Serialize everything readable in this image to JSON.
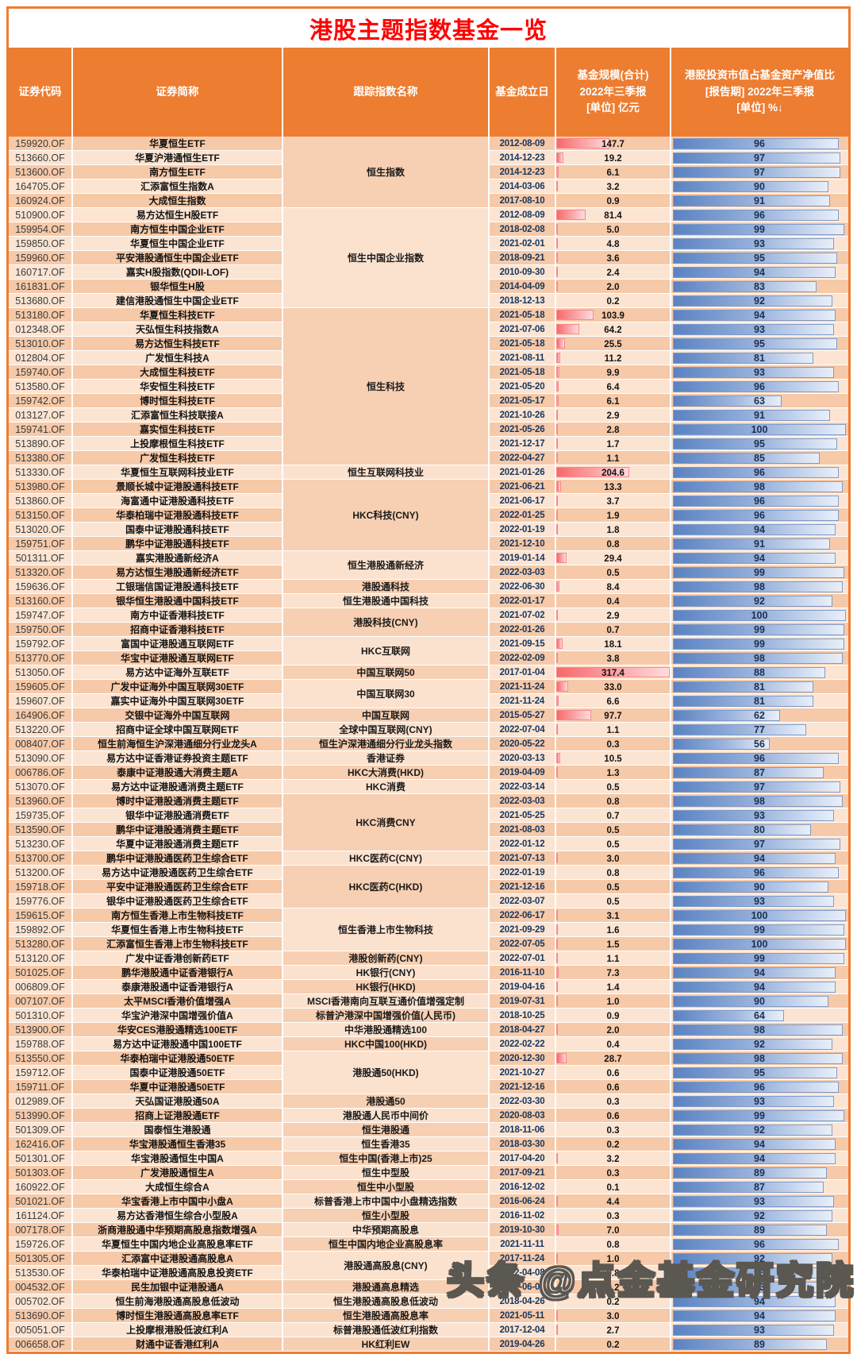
{
  "title": "港股主题指数基金一览",
  "watermark": "头条 @点金基金研究院",
  "colors": {
    "header_bg": "#ED7D31",
    "title_red": "#FE0000",
    "row_dark": "#F6C9A8",
    "row_light": "#FCE4D2",
    "size_bar": "#F8696B",
    "pct_bar": "#5A82C2"
  },
  "table": {
    "columns": [
      "证券代码",
      "证券简称",
      "跟踪指数名称",
      "基金成立日",
      "基金规模(合计)\n2022年三季报\n[单位] 亿元",
      "港股投资市值占基金资产净值比\n[报告期] 2022年三季报\n[单位] %↓"
    ],
    "size_bar_max": 317.4,
    "size_bar_visible_min": 1.0,
    "groups": [
      {
        "index_name": "恒生指数",
        "rows": [
          {
            "code": "159920.OF",
            "name": "华夏恒生ETF",
            "date": "2012-08-09",
            "size": "147.7",
            "pct": 96
          },
          {
            "code": "513660.OF",
            "name": "华夏沪港通恒生ETF",
            "date": "2014-12-23",
            "size": "19.2",
            "pct": 97
          },
          {
            "code": "513600.OF",
            "name": "南方恒生ETF",
            "date": "2014-12-23",
            "size": "6.1",
            "pct": 97
          },
          {
            "code": "164705.OF",
            "name": "汇添富恒生指数A",
            "date": "2014-03-06",
            "size": "3.2",
            "pct": 90
          },
          {
            "code": "160924.OF",
            "name": "大成恒生指数",
            "date": "2017-08-10",
            "size": "0.9",
            "pct": 91
          }
        ]
      },
      {
        "index_name": "恒生中国企业指数",
        "rows": [
          {
            "code": "510900.OF",
            "name": "易方达恒生H股ETF",
            "date": "2012-08-09",
            "size": "81.4",
            "pct": 96
          },
          {
            "code": "159954.OF",
            "name": "南方恒生中国企业ETF",
            "date": "2018-02-08",
            "size": "5.0",
            "pct": 99
          },
          {
            "code": "159850.OF",
            "name": "华夏恒生中国企业ETF",
            "date": "2021-02-01",
            "size": "4.8",
            "pct": 93
          },
          {
            "code": "159960.OF",
            "name": "平安港股通恒生中国企业ETF",
            "date": "2018-09-21",
            "size": "3.6",
            "pct": 95
          },
          {
            "code": "160717.OF",
            "name": "嘉实H股指数(QDII-LOF)",
            "date": "2010-09-30",
            "size": "2.4",
            "pct": 94
          },
          {
            "code": "161831.OF",
            "name": "银华恒生H股",
            "date": "2014-04-09",
            "size": "2.0",
            "pct": 83
          },
          {
            "code": "513680.OF",
            "name": "建信港股通恒生中国企业ETF",
            "date": "2018-12-13",
            "size": "0.2",
            "pct": 92
          }
        ]
      },
      {
        "index_name": "恒生科技",
        "rows": [
          {
            "code": "513180.OF",
            "name": "华夏恒生科技ETF",
            "date": "2021-05-18",
            "size": "103.9",
            "pct": 94
          },
          {
            "code": "012348.OF",
            "name": "天弘恒生科技指数A",
            "date": "2021-07-06",
            "size": "64.2",
            "pct": 93
          },
          {
            "code": "513010.OF",
            "name": "易方达恒生科技ETF",
            "date": "2021-05-18",
            "size": "25.5",
            "pct": 95
          },
          {
            "code": "012804.OF",
            "name": "广发恒生科技A",
            "date": "2021-08-11",
            "size": "11.2",
            "pct": 81
          },
          {
            "code": "159740.OF",
            "name": "大成恒生科技ETF",
            "date": "2021-05-18",
            "size": "9.9",
            "pct": 93
          },
          {
            "code": "513580.OF",
            "name": "华安恒生科技ETF",
            "date": "2021-05-20",
            "size": "6.4",
            "pct": 96
          },
          {
            "code": "159742.OF",
            "name": "博时恒生科技ETF",
            "date": "2021-05-17",
            "size": "6.1",
            "pct": 63
          },
          {
            "code": "013127.OF",
            "name": "汇添富恒生科技联接A",
            "date": "2021-10-26",
            "size": "2.9",
            "pct": 91
          },
          {
            "code": "159741.OF",
            "name": "嘉实恒生科技ETF",
            "date": "2021-05-26",
            "size": "2.8",
            "pct": 100
          },
          {
            "code": "513890.OF",
            "name": "上投摩根恒生科技ETF",
            "date": "2021-12-17",
            "size": "1.7",
            "pct": 95
          },
          {
            "code": "513380.OF",
            "name": "广发恒生科技ETF",
            "date": "2022-04-27",
            "size": "1.1",
            "pct": 85
          }
        ]
      },
      {
        "index_name": "恒生互联网科技业",
        "rows": [
          {
            "code": "513330.OF",
            "name": "华夏恒生互联网科技业ETF",
            "date": "2021-01-26",
            "size": "204.6",
            "pct": 96
          }
        ]
      },
      {
        "index_name": "HKC科技(CNY)",
        "rows": [
          {
            "code": "513980.OF",
            "name": "景顺长城中证港股通科技ETF",
            "date": "2021-06-21",
            "size": "13.3",
            "pct": 98
          },
          {
            "code": "513860.OF",
            "name": "海富通中证港股通科技ETF",
            "date": "2021-06-17",
            "size": "3.7",
            "pct": 96
          },
          {
            "code": "513150.OF",
            "name": "华泰柏瑞中证港股通科技ETF",
            "date": "2022-01-25",
            "size": "1.9",
            "pct": 96
          },
          {
            "code": "513020.OF",
            "name": "国泰中证港股通科技ETF",
            "date": "2022-01-19",
            "size": "1.8",
            "pct": 94
          },
          {
            "code": "159751.OF",
            "name": "鹏华中证港股通科技ETF",
            "date": "2021-12-10",
            "size": "0.8",
            "pct": 91
          }
        ]
      },
      {
        "index_name": "恒生港股通新经济",
        "rows": [
          {
            "code": "501311.OF",
            "name": "嘉实港股通新经济A",
            "date": "2019-01-14",
            "size": "29.4",
            "pct": 94
          },
          {
            "code": "513320.OF",
            "name": "易方达恒生港股通新经济ETF",
            "date": "2022-03-03",
            "size": "0.5",
            "pct": 99
          }
        ]
      },
      {
        "index_name": "港股通科技",
        "rows": [
          {
            "code": "159636.OF",
            "name": "工银瑞信国证港股通科技ETF",
            "date": "2022-06-30",
            "size": "8.4",
            "pct": 98
          }
        ]
      },
      {
        "index_name": "恒生港股通中国科技",
        "rows": [
          {
            "code": "513160.OF",
            "name": "银华恒生港股通中国科技ETF",
            "date": "2022-01-17",
            "size": "0.4",
            "pct": 92
          }
        ]
      },
      {
        "index_name": "港股科技(CNY)",
        "rows": [
          {
            "code": "159747.OF",
            "name": "南方中证香港科技ETF",
            "date": "2021-07-02",
            "size": "2.9",
            "pct": 100
          },
          {
            "code": "159750.OF",
            "name": "招商中证香港科技ETF",
            "date": "2022-01-26",
            "size": "0.7",
            "pct": 99
          }
        ]
      },
      {
        "index_name": "HKC互联网",
        "rows": [
          {
            "code": "159792.OF",
            "name": "富国中证港股通互联网ETF",
            "date": "2021-09-15",
            "size": "18.1",
            "pct": 99
          },
          {
            "code": "513770.OF",
            "name": "华宝中证港股通互联网ETF",
            "date": "2022-02-09",
            "size": "3.8",
            "pct": 98
          }
        ]
      },
      {
        "index_name": "中国互联网50",
        "rows": [
          {
            "code": "513050.OF",
            "name": "易方达中证海外互联ETF",
            "date": "2017-01-04",
            "size": "317.4",
            "pct": 88
          }
        ]
      },
      {
        "index_name": "中国互联网30",
        "rows": [
          {
            "code": "159605.OF",
            "name": "广发中证海外中国互联网30ETF",
            "date": "2021-11-24",
            "size": "33.0",
            "pct": 81
          },
          {
            "code": "159607.OF",
            "name": "嘉实中证海外中国互联网30ETF",
            "date": "2021-11-24",
            "size": "6.6",
            "pct": 81
          }
        ]
      },
      {
        "index_name": "中国互联网",
        "rows": [
          {
            "code": "164906.OF",
            "name": "交银中证海外中国互联网",
            "date": "2015-05-27",
            "size": "97.7",
            "pct": 62
          }
        ]
      },
      {
        "index_name": "全球中国互联网(CNY)",
        "rows": [
          {
            "code": "513220.OF",
            "name": "招商中证全球中国互联网ETF",
            "date": "2022-07-04",
            "size": "1.1",
            "pct": 77
          }
        ]
      },
      {
        "index_name": "恒生沪深港通细分行业龙头指数",
        "rows": [
          {
            "code": "008407.OF",
            "name": "恒生前海恒生沪深港通细分行业龙头A",
            "date": "2020-05-22",
            "size": "0.3",
            "pct": 56
          }
        ]
      },
      {
        "index_name": "香港证券",
        "rows": [
          {
            "code": "513090.OF",
            "name": "易方达中证香港证券投资主题ETF",
            "date": "2020-03-13",
            "size": "10.5",
            "pct": 96
          }
        ]
      },
      {
        "index_name": "HKC大消费(HKD)",
        "rows": [
          {
            "code": "006786.OF",
            "name": "泰康中证港股通大消费主题A",
            "date": "2019-04-09",
            "size": "1.3",
            "pct": 87
          }
        ]
      },
      {
        "index_name": "HKC消费",
        "rows": [
          {
            "code": "513070.OF",
            "name": "易方达中证港股通消费主题ETF",
            "date": "2022-03-14",
            "size": "0.5",
            "pct": 97
          }
        ]
      },
      {
        "index_name": "HKC消费CNY",
        "rows": [
          {
            "code": "513960.OF",
            "name": "博时中证港股通消费主题ETF",
            "date": "2022-03-03",
            "size": "0.8",
            "pct": 98
          },
          {
            "code": "159735.OF",
            "name": "银华中证港股通消费ETF",
            "date": "2021-05-25",
            "size": "0.7",
            "pct": 93
          },
          {
            "code": "513590.OF",
            "name": "鹏华中证港股通消费主题ETF",
            "date": "2021-08-03",
            "size": "0.5",
            "pct": 80
          },
          {
            "code": "513230.OF",
            "name": "华夏中证港股通消费主题ETF",
            "date": "2022-01-12",
            "size": "0.5",
            "pct": 97
          }
        ]
      },
      {
        "index_name": "HKC医药C(CNY)",
        "rows": [
          {
            "code": "513700.OF",
            "name": "鹏华中证港股通医药卫生综合ETF",
            "date": "2021-07-13",
            "size": "3.0",
            "pct": 94
          }
        ]
      },
      {
        "index_name": "HKC医药C(HKD)",
        "rows": [
          {
            "code": "513200.OF",
            "name": "易方达中证港股通医药卫生综合ETF",
            "date": "2022-01-19",
            "size": "0.8",
            "pct": 96
          },
          {
            "code": "159718.OF",
            "name": "平安中证港股通医药卫生综合ETF",
            "date": "2021-12-16",
            "size": "0.5",
            "pct": 90
          },
          {
            "code": "159776.OF",
            "name": "银华中证港股通医药卫生综合ETF",
            "date": "2022-03-07",
            "size": "0.5",
            "pct": 93
          }
        ]
      },
      {
        "index_name": "恒生香港上市生物科技",
        "rows": [
          {
            "code": "159615.OF",
            "name": "南方恒生香港上市生物科技ETF",
            "date": "2022-06-17",
            "size": "3.1",
            "pct": 100
          },
          {
            "code": "159892.OF",
            "name": "华夏恒生香港上市生物科技ETF",
            "date": "2021-09-29",
            "size": "1.6",
            "pct": 99
          },
          {
            "code": "513280.OF",
            "name": "汇添富恒生香港上市生物科技ETF",
            "date": "2022-07-05",
            "size": "1.5",
            "pct": 100
          }
        ]
      },
      {
        "index_name": "港股创新药(CNY)",
        "rows": [
          {
            "code": "513120.OF",
            "name": "广发中证香港创新药ETF",
            "date": "2022-07-01",
            "size": "1.1",
            "pct": 99
          }
        ]
      },
      {
        "index_name": "HK银行(CNY)",
        "rows": [
          {
            "code": "501025.OF",
            "name": "鹏华港股通中证香港银行A",
            "date": "2016-11-10",
            "size": "7.3",
            "pct": 94
          }
        ]
      },
      {
        "index_name": "HK银行(HKD)",
        "rows": [
          {
            "code": "006809.OF",
            "name": "泰康港股通中证香港银行A",
            "date": "2019-04-16",
            "size": "1.4",
            "pct": 94
          }
        ]
      },
      {
        "index_name": "MSCI香港南向互联互通价值增强定制",
        "rows": [
          {
            "code": "007107.OF",
            "name": "太平MSCI香港价值增强A",
            "date": "2019-07-31",
            "size": "1.0",
            "pct": 90
          }
        ]
      },
      {
        "index_name": "标普沪港深中国增强价值(人民币)",
        "rows": [
          {
            "code": "501310.OF",
            "name": "华宝沪港深中国增强价值A",
            "date": "2018-10-25",
            "size": "0.9",
            "pct": 64
          }
        ]
      },
      {
        "index_name": "中华港股通精选100",
        "rows": [
          {
            "code": "513900.OF",
            "name": "华安CES港股通精选100ETF",
            "date": "2018-04-27",
            "size": "2.0",
            "pct": 98
          }
        ]
      },
      {
        "index_name": "HKC中国100(HKD)",
        "rows": [
          {
            "code": "159788.OF",
            "name": "易方达中证港股通中国100ETF",
            "date": "2022-02-22",
            "size": "0.4",
            "pct": 92
          }
        ]
      },
      {
        "index_name": "港股通50(HKD)",
        "rows": [
          {
            "code": "513550.OF",
            "name": "华泰柏瑞中证港股通50ETF",
            "date": "2020-12-30",
            "size": "28.7",
            "pct": 98
          },
          {
            "code": "159712.OF",
            "name": "国泰中证港股通50ETF",
            "date": "2021-10-27",
            "size": "0.6",
            "pct": 95
          },
          {
            "code": "159711.OF",
            "name": "华夏中证港股通50ETF",
            "date": "2021-12-16",
            "size": "0.6",
            "pct": 96
          }
        ]
      },
      {
        "index_name": "港股通50",
        "rows": [
          {
            "code": "012989.OF",
            "name": "天弘国证港股通50A",
            "date": "2022-03-30",
            "size": "0.3",
            "pct": 93
          }
        ]
      },
      {
        "index_name": "港股通人民币中间价",
        "rows": [
          {
            "code": "513990.OF",
            "name": "招商上证港股通ETF",
            "date": "2020-08-03",
            "size": "0.6",
            "pct": 99
          }
        ]
      },
      {
        "index_name": "恒生港股通",
        "rows": [
          {
            "code": "501309.OF",
            "name": "国泰恒生港股通",
            "date": "2018-11-06",
            "size": "0.3",
            "pct": 92
          }
        ]
      },
      {
        "index_name": "恒生香港35",
        "rows": [
          {
            "code": "162416.OF",
            "name": "华宝港股通恒生香港35",
            "date": "2018-03-30",
            "size": "0.2",
            "pct": 94
          }
        ]
      },
      {
        "index_name": "恒生中国(香港上市)25",
        "rows": [
          {
            "code": "501301.OF",
            "name": "华宝港股通恒生中国A",
            "date": "2017-04-20",
            "size": "3.2",
            "pct": 94
          }
        ]
      },
      {
        "index_name": "恒生中型股",
        "rows": [
          {
            "code": "501303.OF",
            "name": "广发港股通恒生A",
            "date": "2017-09-21",
            "size": "0.3",
            "pct": 89
          }
        ]
      },
      {
        "index_name": "恒生中小型股",
        "rows": [
          {
            "code": "160922.OF",
            "name": "大成恒生综合A",
            "date": "2016-12-02",
            "size": "0.1",
            "pct": 87
          }
        ]
      },
      {
        "index_name": "标普香港上市中国中小盘精选指数",
        "rows": [
          {
            "code": "501021.OF",
            "name": "华宝香港上市中国中小盘A",
            "date": "2016-06-24",
            "size": "4.4",
            "pct": 93
          }
        ]
      },
      {
        "index_name": "恒生小型股",
        "rows": [
          {
            "code": "161124.OF",
            "name": "易方达香港恒生综合小型股A",
            "date": "2016-11-02",
            "size": "0.3",
            "pct": 92
          }
        ]
      },
      {
        "index_name": "中华预期高股息",
        "rows": [
          {
            "code": "007178.OF",
            "name": "浙商港股通中华预期高股息指数增强A",
            "date": "2019-10-30",
            "size": "7.0",
            "pct": 89
          }
        ]
      },
      {
        "index_name": "恒生中国内地企业高股息率",
        "rows": [
          {
            "code": "159726.OF",
            "name": "华夏恒生中国内地企业高股息率ETF",
            "date": "2021-11-11",
            "size": "0.8",
            "pct": 96
          }
        ]
      },
      {
        "index_name": "港股通高股息(CNY)",
        "rows": [
          {
            "code": "501305.OF",
            "name": "汇添富中证港股通高股息A",
            "date": "2017-11-24",
            "size": "1.0",
            "pct": 92
          },
          {
            "code": "513530.OF",
            "name": "华泰柏瑞中证港股通高股息投资ETF",
            "date": "2022-04-08",
            "size": "0.8",
            "pct": 96
          }
        ]
      },
      {
        "index_name": "港股通高息精选",
        "rows": [
          {
            "code": "004532.OF",
            "name": "民生加银中证港股通A",
            "date": "2017-06-02",
            "size": "0.2",
            "pct": 93
          }
        ]
      },
      {
        "index_name": "恒生港股通高股息低波动",
        "rows": [
          {
            "code": "005702.OF",
            "name": "恒生前海港股通高股息低波动",
            "date": "2018-04-26",
            "size": "0.2",
            "pct": 94
          }
        ]
      },
      {
        "index_name": "恒生港股通高股息率",
        "rows": [
          {
            "code": "513690.OF",
            "name": "博时恒生港股通高股息率ETF",
            "date": "2021-05-11",
            "size": "3.0",
            "pct": 94
          }
        ]
      },
      {
        "index_name": "标普港股通低波红利指数",
        "rows": [
          {
            "code": "005051.OF",
            "name": "上投摩根港股低波红利A",
            "date": "2017-12-04",
            "size": "2.7",
            "pct": 93
          }
        ]
      },
      {
        "index_name": "HK红利EW",
        "rows": [
          {
            "code": "006658.OF",
            "name": "财通中证香港红利A",
            "date": "2019-04-26",
            "size": "0.2",
            "pct": 89
          }
        ]
      }
    ]
  }
}
